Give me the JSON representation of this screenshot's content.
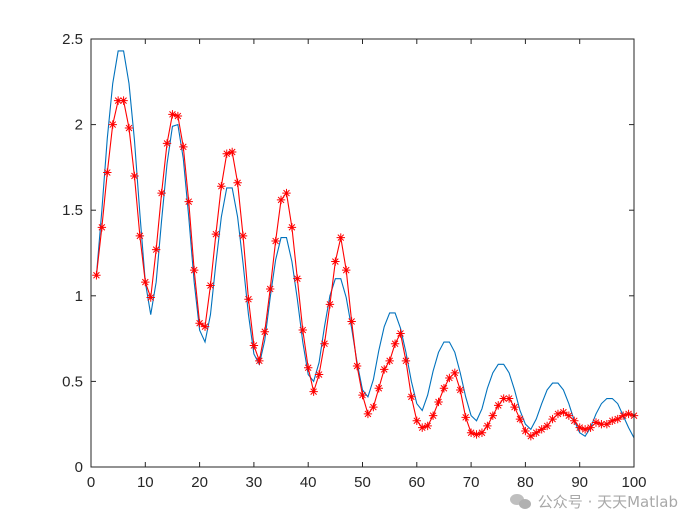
{
  "chart_data": {
    "type": "line",
    "title": "",
    "xlabel": "",
    "ylabel": "",
    "xlim": [
      0,
      100
    ],
    "ylim": [
      0,
      2.5
    ],
    "xticks": [
      0,
      10,
      20,
      30,
      40,
      50,
      60,
      70,
      80,
      90,
      100
    ],
    "yticks": [
      0,
      0.5,
      1,
      1.5,
      2,
      2.5
    ],
    "xtick_labels": [
      "0",
      "10",
      "20",
      "30",
      "40",
      "50",
      "60",
      "70",
      "80",
      "90",
      "100"
    ],
    "ytick_labels": [
      "0",
      "0.5",
      "1",
      "1.5",
      "2",
      "2.5"
    ],
    "grid": false,
    "legend": "none",
    "series": [
      {
        "color": "#0072BD",
        "marker": "none",
        "x": [
          1,
          2,
          3,
          4,
          5,
          6,
          7,
          8,
          9,
          10,
          11,
          12,
          13,
          14,
          15,
          16,
          17,
          18,
          19,
          20,
          21,
          22,
          23,
          24,
          25,
          26,
          27,
          28,
          29,
          30,
          31,
          32,
          33,
          34,
          35,
          36,
          37,
          38,
          39,
          40,
          41,
          42,
          43,
          44,
          45,
          46,
          47,
          48,
          49,
          50,
          51,
          52,
          53,
          54,
          55,
          56,
          57,
          58,
          59,
          60,
          61,
          62,
          63,
          64,
          65,
          66,
          67,
          68,
          69,
          70,
          71,
          72,
          73,
          74,
          75,
          76,
          77,
          78,
          79,
          80,
          81,
          82,
          83,
          84,
          85,
          86,
          87,
          88,
          89,
          90,
          91,
          92,
          93,
          94,
          95,
          96,
          97,
          98,
          99,
          100
        ],
        "y": [
          1.12,
          1.5,
          1.92,
          2.24,
          2.43,
          2.43,
          2.24,
          1.91,
          1.48,
          1.08,
          0.89,
          1.08,
          1.44,
          1.77,
          1.99,
          2.0,
          1.8,
          1.46,
          1.08,
          0.8,
          0.73,
          0.89,
          1.19,
          1.46,
          1.63,
          1.63,
          1.46,
          1.19,
          0.89,
          0.66,
          0.6,
          0.74,
          0.99,
          1.21,
          1.34,
          1.34,
          1.2,
          0.98,
          0.73,
          0.54,
          0.5,
          0.61,
          0.82,
          1.0,
          1.1,
          1.1,
          0.99,
          0.81,
          0.61,
          0.45,
          0.41,
          0.51,
          0.68,
          0.82,
          0.9,
          0.9,
          0.81,
          0.67,
          0.5,
          0.37,
          0.33,
          0.42,
          0.56,
          0.67,
          0.73,
          0.73,
          0.67,
          0.55,
          0.41,
          0.3,
          0.27,
          0.34,
          0.46,
          0.55,
          0.6,
          0.6,
          0.55,
          0.45,
          0.33,
          0.25,
          0.22,
          0.28,
          0.37,
          0.45,
          0.49,
          0.49,
          0.45,
          0.37,
          0.27,
          0.2,
          0.18,
          0.23,
          0.31,
          0.37,
          0.4,
          0.4,
          0.37,
          0.3,
          0.23,
          0.17
        ]
      },
      {
        "color": "#FF0000",
        "marker": "asterisk",
        "x": [
          1,
          2,
          3,
          4,
          5,
          6,
          7,
          8,
          9,
          10,
          11,
          12,
          13,
          14,
          15,
          16,
          17,
          18,
          19,
          20,
          21,
          22,
          23,
          24,
          25,
          26,
          27,
          28,
          29,
          30,
          31,
          32,
          33,
          34,
          35,
          36,
          37,
          38,
          39,
          40,
          41,
          42,
          43,
          44,
          45,
          46,
          47,
          48,
          49,
          50,
          51,
          52,
          53,
          54,
          55,
          56,
          57,
          58,
          59,
          60,
          61,
          62,
          63,
          64,
          65,
          66,
          67,
          68,
          69,
          70,
          71,
          72,
          73,
          74,
          75,
          76,
          77,
          78,
          79,
          80,
          81,
          82,
          83,
          84,
          85,
          86,
          87,
          88,
          89,
          90,
          91,
          92,
          93,
          94,
          95,
          96,
          97,
          98,
          99,
          100
        ],
        "y": [
          1.12,
          1.4,
          1.72,
          2.0,
          2.14,
          2.14,
          1.98,
          1.7,
          1.35,
          1.08,
          0.99,
          1.27,
          1.6,
          1.89,
          2.06,
          2.05,
          1.87,
          1.55,
          1.15,
          0.84,
          0.82,
          1.06,
          1.36,
          1.64,
          1.83,
          1.84,
          1.66,
          1.35,
          0.98,
          0.71,
          0.62,
          0.79,
          1.04,
          1.32,
          1.56,
          1.6,
          1.4,
          1.1,
          0.8,
          0.58,
          0.44,
          0.54,
          0.72,
          0.95,
          1.2,
          1.34,
          1.15,
          0.85,
          0.59,
          0.42,
          0.31,
          0.35,
          0.46,
          0.57,
          0.62,
          0.72,
          0.78,
          0.62,
          0.41,
          0.27,
          0.23,
          0.24,
          0.3,
          0.38,
          0.46,
          0.52,
          0.55,
          0.45,
          0.29,
          0.2,
          0.19,
          0.2,
          0.24,
          0.3,
          0.36,
          0.4,
          0.4,
          0.35,
          0.28,
          0.21,
          0.18,
          0.2,
          0.22,
          0.24,
          0.28,
          0.31,
          0.32,
          0.3,
          0.27,
          0.23,
          0.22,
          0.23,
          0.26,
          0.25,
          0.25,
          0.27,
          0.28,
          0.3,
          0.31,
          0.3
        ]
      }
    ]
  },
  "watermark": {
    "text": "公众号 · 天天Matlab",
    "icon": "wechat-logo-icon"
  }
}
